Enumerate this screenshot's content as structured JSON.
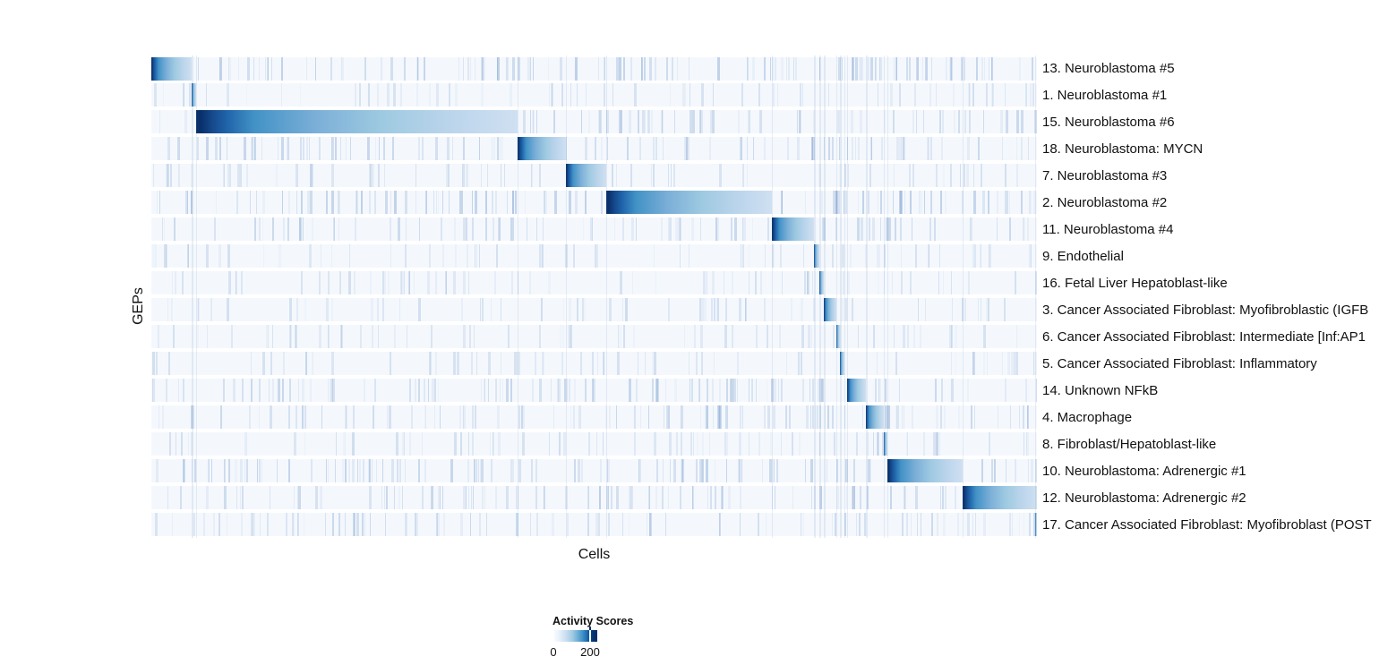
{
  "page": {
    "background": "#ffffff"
  },
  "chart_data": {
    "type": "heatmap",
    "xlabel": "Cells",
    "ylabel": "GEPs",
    "value_range": [
      0,
      200
    ],
    "legend": {
      "title": "Activity Scores",
      "min_label": "0",
      "max_label": "200",
      "tick_fraction": 0.82
    },
    "colors": {
      "dark": "#08306b",
      "mid_dark": "#2166ac",
      "mid": "#4292c6",
      "light_mid": "#9ecae1",
      "light": "#c6dbef",
      "pale_end": "#cfe0f1",
      "row_bg": "#f4f8fd",
      "stripe_rgb": "122,158,205",
      "ghost_rgb": "80,120,175"
    },
    "rows": [
      {
        "label": "13. Neuroblastoma #5",
        "block_start": 0.0,
        "block_end": 0.046,
        "noise": 0.8
      },
      {
        "label": "1. Neuroblastoma #1",
        "block_start": 0.046,
        "block_end": 0.0505,
        "noise": 0.3
      },
      {
        "label": "15. Neuroblastoma #6",
        "block_start": 0.0505,
        "block_end": 0.4135,
        "noise": 0.55
      },
      {
        "label": "18. Neuroblastoma: MYCN",
        "block_start": 0.4135,
        "block_end": 0.468,
        "noise": 0.65
      },
      {
        "label": "7. Neuroblastoma #3",
        "block_start": 0.468,
        "block_end": 0.5135,
        "noise": 0.35
      },
      {
        "label": "2. Neuroblastoma #2",
        "block_start": 0.5135,
        "block_end": 0.7005,
        "noise": 0.8
      },
      {
        "label": "11. Neuroblastoma #4",
        "block_start": 0.7005,
        "block_end": 0.7485,
        "noise": 0.5
      },
      {
        "label": "9. Endothelial",
        "block_start": 0.7485,
        "block_end": 0.7547,
        "noise": 0.3
      },
      {
        "label": "16. Fetal Liver Hepatoblast-like",
        "block_start": 0.7547,
        "block_end": 0.7598,
        "noise": 0.3
      },
      {
        "label": "3. Cancer Associated Fibroblast: Myofibroblastic (IGFB",
        "block_start": 0.7598,
        "block_end": 0.7735,
        "noise": 0.3
      },
      {
        "label": "6. Cancer Associated Fibroblast: Intermediate [Inf:AP1",
        "block_start": 0.7735,
        "block_end": 0.778,
        "noise": 0.3
      },
      {
        "label": "5. Cancer Associated Fibroblast: Inflammatory",
        "block_start": 0.778,
        "block_end": 0.7826,
        "noise": 0.3
      },
      {
        "label": "14. Unknown NFkB",
        "block_start": 0.7856,
        "block_end": 0.807,
        "noise": 0.6
      },
      {
        "label": "4. Macrophage",
        "block_start": 0.807,
        "block_end": 0.827,
        "noise": 0.6
      },
      {
        "label": "8. Fibroblast/Hepatoblast-like",
        "block_start": 0.827,
        "block_end": 0.8312,
        "noise": 0.35
      },
      {
        "label": "10. Neuroblastoma: Adrenergic #1",
        "block_start": 0.8312,
        "block_end": 0.916,
        "noise": 0.7
      },
      {
        "label": "12. Neuroblastoma: Adrenergic #2",
        "block_start": 0.916,
        "block_end": 1.0,
        "noise": 0.6
      },
      {
        "label": "17. Cancer Associated Fibroblast: Myofibroblast (POST",
        "block_start": 0.998,
        "block_end": 1.0,
        "noise": 0.5
      }
    ],
    "ghost_columns": [
      0.046,
      0.0505,
      0.4135,
      0.468,
      0.5135,
      0.7005,
      0.7485,
      0.7547,
      0.7598,
      0.7735,
      0.778,
      0.7826,
      0.7856,
      0.807,
      0.827,
      0.8312,
      0.916,
      0.998
    ]
  }
}
